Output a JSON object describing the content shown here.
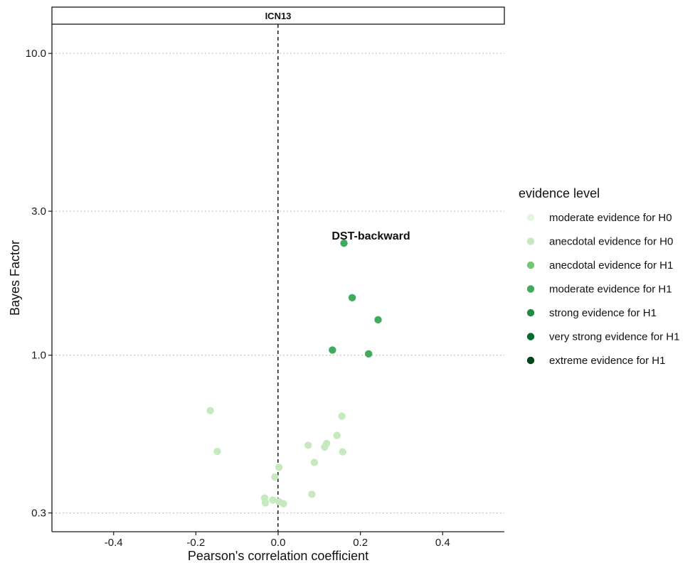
{
  "chart_data": {
    "type": "scatter",
    "panel_title": "ICN13",
    "xlabel": "Pearson's correlation coefficient",
    "ylabel": "Bayes Factor",
    "xlim": [
      -0.55,
      0.55
    ],
    "ylim": [
      0.26,
      12.5
    ],
    "y_scale": "log",
    "x_ticks": [
      -0.4,
      -0.2,
      0.0,
      0.2,
      0.4
    ],
    "x_tick_labels": [
      "-0.4",
      "-0.2",
      "0.0",
      "0.2",
      "0.4"
    ],
    "y_ticks": [
      0.3,
      1.0,
      3.0,
      10.0
    ],
    "y_tick_labels": [
      "0.3",
      "1.0",
      "3.0",
      "10.0"
    ],
    "reference_line": {
      "x": 0,
      "style": "dashed"
    },
    "grid": "horizontal dotted",
    "legend": {
      "title": "evidence level",
      "placement": "right",
      "entries": [
        {
          "label": "moderate evidence for H0",
          "color": "#e5f5e0"
        },
        {
          "label": "anecdotal evidence for H0",
          "color": "#c7e9c0"
        },
        {
          "label": "anecdotal evidence for H1",
          "color": "#74c476"
        },
        {
          "label": "moderate evidence for H1",
          "color": "#41ab5d"
        },
        {
          "label": "strong evidence for H1",
          "color": "#238b45"
        },
        {
          "label": "very strong evidence for H1",
          "color": "#006d2c"
        },
        {
          "label": "extreme evidence for H1",
          "color": "#00441b"
        }
      ]
    },
    "points": [
      {
        "x": 0.16,
        "y": 2.35,
        "level": 3,
        "label": "DST-backward"
      },
      {
        "x": 0.18,
        "y": 1.55,
        "level": 3
      },
      {
        "x": 0.243,
        "y": 1.31,
        "level": 3
      },
      {
        "x": 0.132,
        "y": 1.04,
        "level": 3
      },
      {
        "x": 0.22,
        "y": 1.01,
        "level": 3
      },
      {
        "x": -0.165,
        "y": 0.655,
        "level": 1
      },
      {
        "x": 0.155,
        "y": 0.628,
        "level": 1
      },
      {
        "x": 0.143,
        "y": 0.542,
        "level": 1
      },
      {
        "x": 0.118,
        "y": 0.51,
        "level": 1
      },
      {
        "x": 0.073,
        "y": 0.503,
        "level": 1
      },
      {
        "x": 0.113,
        "y": 0.496,
        "level": 1
      },
      {
        "x": -0.148,
        "y": 0.48,
        "level": 1
      },
      {
        "x": 0.157,
        "y": 0.478,
        "level": 1
      },
      {
        "x": 0.088,
        "y": 0.441,
        "level": 1
      },
      {
        "x": 0.002,
        "y": 0.425,
        "level": 1
      },
      {
        "x": -0.008,
        "y": 0.395,
        "level": 1
      },
      {
        "x": 0.082,
        "y": 0.346,
        "level": 1
      },
      {
        "x": -0.033,
        "y": 0.336,
        "level": 1
      },
      {
        "x": -0.013,
        "y": 0.331,
        "level": 1
      },
      {
        "x": 0.002,
        "y": 0.327,
        "level": 1
      },
      {
        "x": -0.031,
        "y": 0.324,
        "level": 1
      },
      {
        "x": 0.013,
        "y": 0.322,
        "level": 1
      }
    ]
  }
}
